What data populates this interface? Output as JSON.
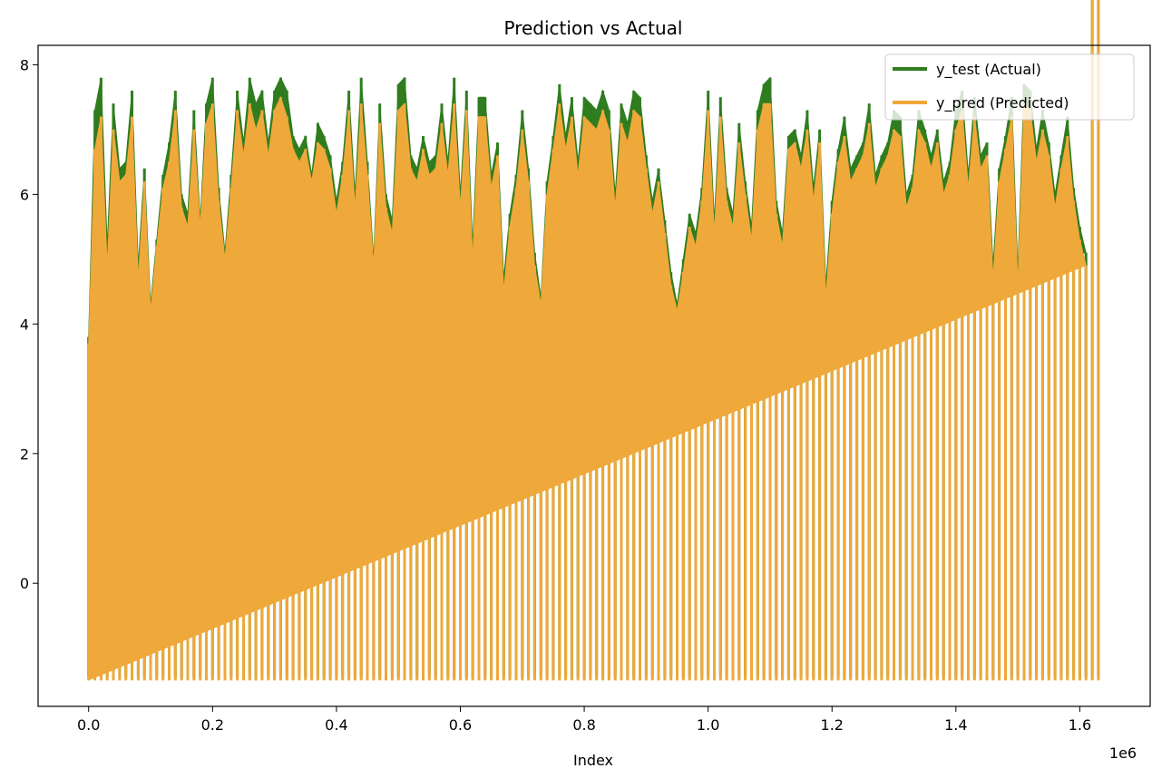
{
  "chart_data": {
    "type": "line",
    "title": "Prediction vs Actual",
    "xlabel": "Index",
    "ylabel": "",
    "x_offset_label": "1e6",
    "xlim": [
      -0.0816,
      1.7136
    ],
    "ylim": [
      -1.9,
      8.3
    ],
    "x_ticks": [
      0.0,
      0.2,
      0.4,
      0.6,
      0.8,
      1.0,
      1.2,
      1.4,
      1.6
    ],
    "x_tick_labels": [
      "0.0",
      "0.2",
      "0.4",
      "0.6",
      "0.8",
      "1.0",
      "1.2",
      "1.4",
      "1.6"
    ],
    "y_ticks": [
      0,
      2,
      4,
      6,
      8
    ],
    "y_tick_labels": [
      "0",
      "2",
      "4",
      "6",
      "8"
    ],
    "grid": false,
    "legend_position": "top-right",
    "series": [
      {
        "name": "y_test (Actual)",
        "color": "#2f7d1f",
        "x": [
          0.0,
          0.01,
          0.02,
          0.03,
          0.04,
          0.05,
          0.06,
          0.07,
          0.08,
          0.09,
          0.1,
          0.11,
          0.12,
          0.13,
          0.14,
          0.15,
          0.16,
          0.17,
          0.18,
          0.19,
          0.2,
          0.21,
          0.22,
          0.23,
          0.24,
          0.25,
          0.26,
          0.27,
          0.28,
          0.29,
          0.3,
          0.31,
          0.32,
          0.33,
          0.34,
          0.35,
          0.36,
          0.37,
          0.38,
          0.39,
          0.4,
          0.41,
          0.42,
          0.43,
          0.44,
          0.45,
          0.46,
          0.47,
          0.48,
          0.49,
          0.5,
          0.51,
          0.52,
          0.53,
          0.54,
          0.55,
          0.56,
          0.57,
          0.58,
          0.59,
          0.6,
          0.61,
          0.62,
          0.63,
          0.64,
          0.65,
          0.66,
          0.67,
          0.68,
          0.69,
          0.7,
          0.71,
          0.72,
          0.73,
          0.74,
          0.75,
          0.76,
          0.77,
          0.78,
          0.79,
          0.8,
          0.81,
          0.82,
          0.83,
          0.84,
          0.85,
          0.86,
          0.87,
          0.88,
          0.89,
          0.9,
          0.91,
          0.92,
          0.93,
          0.94,
          0.95,
          0.96,
          0.97,
          0.98,
          0.99,
          1.0,
          1.01,
          1.02,
          1.03,
          1.04,
          1.05,
          1.06,
          1.07,
          1.08,
          1.09,
          1.1,
          1.11,
          1.12,
          1.13,
          1.14,
          1.15,
          1.16,
          1.17,
          1.18,
          1.19,
          1.2,
          1.21,
          1.22,
          1.23,
          1.24,
          1.25,
          1.26,
          1.27,
          1.28,
          1.29,
          1.3,
          1.31,
          1.32,
          1.33,
          1.34,
          1.35,
          1.36,
          1.37,
          1.38,
          1.39,
          1.4,
          1.41,
          1.42,
          1.43,
          1.44,
          1.45,
          1.46,
          1.47,
          1.48,
          1.49,
          1.5,
          1.51,
          1.52,
          1.53,
          1.54,
          1.55,
          1.56,
          1.57,
          1.58,
          1.59,
          1.6,
          1.61,
          1.62,
          1.63
        ],
        "y_max": [
          3.8,
          7.3,
          7.8,
          5.2,
          7.4,
          6.4,
          6.5,
          7.6,
          4.9,
          6.4,
          4.3,
          5.3,
          6.3,
          6.8,
          7.6,
          6.0,
          5.7,
          7.3,
          5.6,
          7.4,
          7.8,
          6.1,
          5.1,
          6.3,
          7.6,
          6.8,
          7.8,
          7.4,
          7.6,
          6.8,
          7.6,
          7.8,
          7.6,
          6.9,
          6.7,
          6.9,
          6.3,
          7.1,
          6.9,
          6.6,
          5.9,
          6.5,
          7.6,
          6.0,
          7.8,
          6.5,
          5.0,
          7.4,
          6.0,
          5.6,
          7.7,
          7.8,
          6.6,
          6.4,
          6.9,
          6.5,
          6.6,
          7.4,
          6.5,
          7.8,
          6.0,
          7.6,
          5.2,
          7.5,
          7.5,
          6.3,
          6.8,
          4.7,
          5.7,
          6.3,
          7.3,
          6.4,
          5.1,
          4.4,
          6.2,
          6.9,
          7.7,
          6.9,
          7.5,
          6.5,
          7.5,
          7.4,
          7.3,
          7.6,
          7.3,
          6.0,
          7.4,
          7.1,
          7.6,
          7.5,
          6.6,
          5.9,
          6.4,
          5.6,
          4.8,
          4.3,
          5.0,
          5.7,
          5.4,
          6.1,
          7.6,
          5.6,
          7.5,
          6.1,
          5.7,
          7.1,
          6.2,
          5.5,
          7.3,
          7.7,
          7.8,
          5.9,
          5.4,
          6.9,
          7.0,
          6.6,
          7.3,
          6.1,
          7.0,
          4.6,
          5.9,
          6.7,
          7.2,
          6.4,
          6.6,
          6.8,
          7.4,
          6.3,
          6.6,
          6.8,
          7.3,
          7.2,
          6.0,
          6.3,
          7.3,
          7.0,
          6.6,
          7.0,
          6.2,
          6.5,
          7.3,
          7.6,
          6.3,
          7.5,
          6.6,
          6.8,
          4.9,
          6.4,
          6.9,
          7.5,
          4.8,
          7.7,
          7.6,
          6.7,
          7.3,
          6.8,
          6.0,
          6.6,
          7.2,
          6.1,
          5.5,
          5.1
        ],
        "y_min": -1.45
      },
      {
        "name": "y_pred (Predicted)",
        "color": "#efa83a",
        "x": [
          0.0,
          0.01,
          0.02,
          0.03,
          0.04,
          0.05,
          0.06,
          0.07,
          0.08,
          0.09,
          0.1,
          0.11,
          0.12,
          0.13,
          0.14,
          0.15,
          0.16,
          0.17,
          0.18,
          0.19,
          0.2,
          0.21,
          0.22,
          0.23,
          0.24,
          0.25,
          0.26,
          0.27,
          0.28,
          0.29,
          0.3,
          0.31,
          0.32,
          0.33,
          0.34,
          0.35,
          0.36,
          0.37,
          0.38,
          0.39,
          0.4,
          0.41,
          0.42,
          0.43,
          0.44,
          0.45,
          0.46,
          0.47,
          0.48,
          0.49,
          0.5,
          0.51,
          0.52,
          0.53,
          0.54,
          0.55,
          0.56,
          0.57,
          0.58,
          0.59,
          0.6,
          0.61,
          0.62,
          0.63,
          0.64,
          0.65,
          0.66,
          0.67,
          0.68,
          0.69,
          0.7,
          0.71,
          0.72,
          0.73,
          0.74,
          0.75,
          0.76,
          0.77,
          0.78,
          0.79,
          0.8,
          0.81,
          0.82,
          0.83,
          0.84,
          0.85,
          0.86,
          0.87,
          0.88,
          0.89,
          0.9,
          0.91,
          0.92,
          0.93,
          0.94,
          0.95,
          0.96,
          0.97,
          0.98,
          0.99,
          1.0,
          1.01,
          1.02,
          1.03,
          1.04,
          1.05,
          1.06,
          1.07,
          1.08,
          1.09,
          1.1,
          1.11,
          1.12,
          1.13,
          1.14,
          1.15,
          1.16,
          1.17,
          1.18,
          1.19,
          1.2,
          1.21,
          1.22,
          1.23,
          1.24,
          1.25,
          1.26,
          1.27,
          1.28,
          1.29,
          1.3,
          1.31,
          1.32,
          1.33,
          1.34,
          1.35,
          1.36,
          1.37,
          1.38,
          1.39,
          1.4,
          1.41,
          1.42,
          1.43,
          1.44,
          1.45,
          1.46,
          1.47,
          1.48,
          1.49,
          1.5,
          1.51,
          1.52,
          1.53,
          1.54,
          1.55,
          1.56,
          1.57,
          1.58,
          1.59,
          1.6,
          1.61,
          1.62,
          1.63
        ],
        "y_max": [
          3.7,
          6.7,
          7.2,
          4.9,
          7.0,
          6.2,
          6.3,
          7.2,
          4.7,
          6.2,
          4.2,
          5.2,
          6.1,
          6.5,
          7.3,
          5.8,
          5.5,
          7.0,
          5.5,
          7.1,
          7.4,
          5.9,
          5.0,
          6.1,
          7.3,
          6.6,
          7.4,
          7.0,
          7.3,
          6.6,
          7.3,
          7.5,
          7.2,
          6.7,
          6.5,
          6.7,
          6.2,
          6.8,
          6.7,
          6.4,
          5.7,
          6.3,
          7.3,
          5.8,
          7.4,
          6.3,
          4.9,
          7.1,
          5.8,
          5.4,
          7.3,
          7.4,
          6.4,
          6.2,
          6.7,
          6.3,
          6.4,
          7.1,
          6.3,
          7.4,
          5.8,
          7.3,
          5.0,
          7.2,
          7.2,
          6.1,
          6.6,
          4.5,
          5.5,
          6.1,
          7.0,
          6.2,
          4.9,
          4.3,
          6.0,
          6.7,
          7.4,
          6.7,
          7.2,
          6.3,
          7.2,
          7.1,
          7.0,
          7.3,
          7.0,
          5.8,
          7.1,
          6.8,
          7.3,
          7.2,
          6.4,
          5.7,
          6.2,
          5.4,
          4.6,
          4.2,
          4.8,
          5.5,
          5.2,
          5.9,
          7.3,
          5.4,
          7.2,
          5.9,
          5.5,
          6.8,
          6.0,
          5.3,
          7.0,
          7.4,
          7.4,
          5.7,
          5.2,
          6.7,
          6.8,
          6.4,
          7.0,
          5.9,
          6.8,
          4.4,
          5.7,
          6.5,
          6.9,
          6.2,
          6.4,
          6.6,
          7.1,
          6.1,
          6.4,
          6.6,
          7.0,
          6.9,
          5.8,
          6.1,
          7.0,
          6.8,
          6.4,
          6.8,
          6.0,
          6.3,
          7.0,
          7.3,
          6.1,
          7.2,
          6.4,
          6.6,
          4.7,
          6.2,
          6.7,
          7.2,
          4.6,
          7.4,
          7.3,
          6.5,
          7.0,
          6.6,
          5.8,
          6.4,
          6.9,
          5.9,
          5.3,
          4.9
        ],
        "y_min": -1.5
      }
    ]
  }
}
